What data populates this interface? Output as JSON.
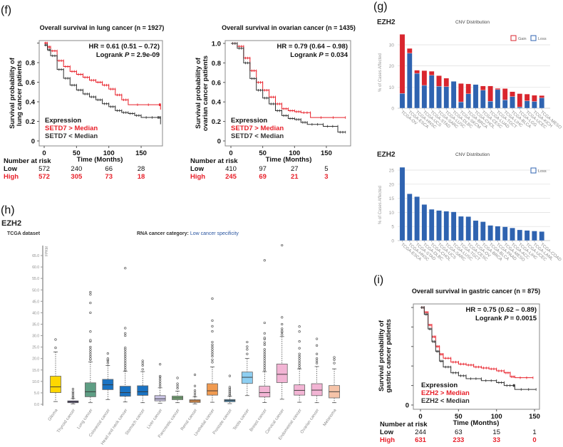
{
  "panel_labels": {
    "f": "(f)",
    "g": "(g)",
    "h": "(h)",
    "i": "(i)"
  },
  "colors": {
    "high": "#e8202a",
    "low": "#333333",
    "gain": "#d9262e",
    "loss": "#2f63b0",
    "link": "#2a55a0"
  },
  "chart_data": [
    {
      "type": "line",
      "style": "kaplan-meier step",
      "title": "Overall survival in lung cancer (n = 1927)",
      "hr": "HR = 0.61 (0.51 – 0.72)",
      "logrank": {
        "label": "Logrank",
        "p": "P",
        "value": "= 2.9e-09"
      },
      "ylabel": [
        "Survival probability of",
        "lung cancer patients"
      ],
      "xlabel": "Time (Months)",
      "xticks": [
        0,
        50,
        100,
        150
      ],
      "yticks": [
        0,
        0.2,
        0.4,
        0.6,
        0.8,
        1.0
      ],
      "ytick_labels": [
        "0",
        "0.2",
        "0.4",
        "0.6",
        "0.8",
        ""
      ],
      "xlim": [
        0,
        180
      ],
      "ylim": [
        0,
        1
      ],
      "legend_title": "Expression",
      "series": [
        {
          "name": "SETD7 > Median",
          "color": "#e8202a",
          "points": [
            [
              0,
              1
            ],
            [
              5,
              0.96
            ],
            [
              10,
              0.92
            ],
            [
              20,
              0.82
            ],
            [
              30,
              0.76
            ],
            [
              40,
              0.71
            ],
            [
              50,
              0.68
            ],
            [
              60,
              0.65
            ],
            [
              70,
              0.62
            ],
            [
              80,
              0.6
            ],
            [
              90,
              0.57
            ],
            [
              100,
              0.53
            ],
            [
              110,
              0.47
            ],
            [
              120,
              0.42
            ],
            [
              130,
              0.37
            ],
            [
              178,
              0.37
            ],
            [
              180,
              0.32
            ]
          ]
        },
        {
          "name": "SETD7 < Median",
          "color": "#333333",
          "points": [
            [
              0,
              0.98
            ],
            [
              5,
              0.93
            ],
            [
              10,
              0.87
            ],
            [
              20,
              0.73
            ],
            [
              30,
              0.64
            ],
            [
              40,
              0.57
            ],
            [
              50,
              0.52
            ],
            [
              60,
              0.48
            ],
            [
              70,
              0.45
            ],
            [
              80,
              0.42
            ],
            [
              90,
              0.38
            ],
            [
              100,
              0.35
            ],
            [
              110,
              0.31
            ],
            [
              120,
              0.29
            ],
            [
              130,
              0.28
            ],
            [
              140,
              0.26
            ],
            [
              150,
              0.24
            ],
            [
              176,
              0.24
            ],
            [
              180,
              0.17
            ]
          ]
        }
      ],
      "risk_table": {
        "title": "Number at risk",
        "rows": [
          {
            "label": "Low",
            "values": [
              572,
              240,
              66,
              28
            ]
          },
          {
            "label": "High",
            "values": [
              572,
              305,
              73,
              18
            ]
          }
        ]
      }
    },
    {
      "type": "line",
      "style": "kaplan-meier step",
      "title": "Overall survival in ovarian cancer (n = 1435)",
      "hr": "HR = 0.79 (0.64 – 0.98)",
      "logrank": {
        "label": "Logrank",
        "p": "P",
        "value": "= 0.034"
      },
      "ylabel": [
        "Survival probability of",
        "ovarian cancer patients"
      ],
      "xlabel": "Time (Months)",
      "xticks": [
        0,
        50,
        100,
        150
      ],
      "yticks": [
        0,
        0.2,
        0.4,
        0.6,
        0.8,
        1.0
      ],
      "ytick_labels": [
        "0",
        "0.2",
        "0.4",
        "0.6",
        "0.8",
        "1.0"
      ],
      "xlim": [
        0,
        180
      ],
      "ylim": [
        0,
        1
      ],
      "legend_title": "Expression",
      "series": [
        {
          "name": "SETD7 > Median",
          "color": "#e8202a",
          "points": [
            [
              0,
              1
            ],
            [
              10,
              0.97
            ],
            [
              20,
              0.85
            ],
            [
              30,
              0.72
            ],
            [
              40,
              0.6
            ],
            [
              50,
              0.52
            ],
            [
              60,
              0.45
            ],
            [
              70,
              0.38
            ],
            [
              80,
              0.33
            ],
            [
              90,
              0.31
            ],
            [
              100,
              0.3
            ],
            [
              110,
              0.29
            ],
            [
              125,
              0.24
            ],
            [
              180,
              0.24
            ]
          ]
        },
        {
          "name": "SETD7 < Median",
          "color": "#333333",
          "points": [
            [
              0,
              1
            ],
            [
              10,
              0.95
            ],
            [
              20,
              0.8
            ],
            [
              30,
              0.64
            ],
            [
              40,
              0.52
            ],
            [
              50,
              0.44
            ],
            [
              60,
              0.38
            ],
            [
              70,
              0.31
            ],
            [
              80,
              0.26
            ],
            [
              90,
              0.23
            ],
            [
              100,
              0.22
            ],
            [
              110,
              0.19
            ],
            [
              120,
              0.17
            ],
            [
              145,
              0.15
            ],
            [
              168,
              0.09
            ],
            [
              180,
              0.09
            ]
          ]
        }
      ],
      "risk_table": {
        "title": "Number at risk",
        "rows": [
          {
            "label": "Low",
            "values": [
              410,
              97,
              27,
              5
            ]
          },
          {
            "label": "High",
            "values": [
              245,
              69,
              21,
              3
            ]
          }
        ]
      }
    },
    {
      "type": "bar",
      "stacked": true,
      "gene": "EZH2",
      "title": "CNV Distribution",
      "ylabel": "% of Cases Affected",
      "ylim": [
        0,
        35
      ],
      "yticks": [
        0,
        10,
        20,
        30
      ],
      "grid": true,
      "legend_position": "top-right",
      "categories": [
        "TCGA-OV",
        "TCGA-ESCA",
        "TCGA-HNSC",
        "TCGA-UCS",
        "TCGA-STAD",
        "TCGA-SARC",
        "TCGA-LUSC",
        "TCGA-DLBC",
        "TCGA-SKCM",
        "TCGA-BRCA",
        "TCGA-CHOL",
        "TCGA-CESC",
        "TCGA-LUAD",
        "TCGA-TGCT",
        "TCGA-LIHC",
        "TCGA-BLCA",
        "TCGA-LGG",
        "TCGA-UCEC",
        "TCGA-KICH",
        "TCGA-MESO"
      ],
      "series": [
        {
          "name": "Loss",
          "color": "#2f63b0",
          "values": [
            7,
            26,
            16.5,
            10.8,
            15.6,
            10.4,
            10.2,
            12.7,
            3,
            6.8,
            11.2,
            8.5,
            3.3,
            8.8,
            3.9,
            5.5,
            0.6,
            3.5,
            3.2,
            4.9
          ]
        },
        {
          "name": "Gain",
          "color": "#d9262e",
          "values": [
            28,
            2.3,
            1.5,
            7,
            1.9,
            5,
            4,
            0,
            8.7,
            4.7,
            0,
            2,
            7.2,
            0.6,
            5.4,
            2.3,
            6.3,
            3.2,
            2.9,
            1.1
          ]
        }
      ]
    },
    {
      "type": "bar",
      "gene": "EZH2",
      "title": "CNV Distribution",
      "ylabel": "% of Cases Affected",
      "ylim": [
        0,
        26
      ],
      "yticks": [
        0,
        5,
        10,
        15,
        20,
        25
      ],
      "grid": true,
      "legend_position": "top-right",
      "categories": [
        "TCGA-ESCA",
        "TCGA-HNSC",
        "TCGA-STAD",
        "TCGA-DLBC",
        "TCGA-CHOL",
        "TCGA-UCS",
        "TCGA-SARC",
        "TCGA-LUSC",
        "TCGA-TGCT",
        "TCGA-CESC",
        "TCGA-OV",
        "TCGA-BRCA",
        "TCGA-BLCA",
        "TCGA-PAAD",
        "TCGA-MESO",
        "TCGA-ACC",
        "TCGA-LIHC",
        "TCGA-UCEC",
        "TCGA-LAML",
        "TCGA-COAD"
      ],
      "series": [
        {
          "name": "Loss",
          "color": "#2f63b0",
          "values": [
            26,
            16.6,
            15.6,
            12.8,
            11.1,
            10.7,
            10.4,
            10.2,
            8.6,
            8.5,
            7.1,
            6.7,
            5.4,
            5.1,
            4.9,
            4.5,
            3.8,
            3.6,
            3.4,
            3.2
          ]
        }
      ]
    },
    {
      "type": "box",
      "gene": "EZH2",
      "dataset_label": "TCGA dataset",
      "category_label": "RNA cancer category:",
      "category_value": "Low cancer specificity",
      "ylabel": "FPKM",
      "ylim": [
        0,
        70
      ],
      "yticks": [
        0,
        5,
        10,
        15,
        20,
        25,
        30,
        35,
        40,
        45,
        50,
        55,
        60,
        65
      ],
      "ytick_labels": [
        "0.0",
        "5.0",
        "10.0",
        "15.0",
        "20.0",
        "25.0",
        "30.0",
        "35.0",
        "40.0",
        "45.0",
        "50.0",
        "55.0",
        "60.0",
        "65.0"
      ],
      "categories": [
        "Glioma",
        "Thyroid cancer",
        "Lung cancer",
        "Colorectal cancer",
        "Head and neck cancer",
        "Stomach cancer",
        "Liver cancer",
        "Pancreatic cancer",
        "Renal cancer",
        "Urothelial cancer",
        "Prostate cancer",
        "Testis cancer",
        "Breast cancer",
        "Cervical cancer",
        "Endometrial cancer",
        "Ovarian cancer",
        "Melanoma"
      ],
      "colors": [
        "#ffd700",
        "#4b3d7a",
        "#5e9e84",
        "#1a73c3",
        "#1a73c3",
        "#1a73c3",
        "#c9c3e3",
        "#7db07d",
        "#f09a50",
        "#f09a50",
        "#4a8db5",
        "#8ecff2",
        "#f2b4d4",
        "#f2b4d4",
        "#f2b4d4",
        "#f2b4d4",
        "#f5c3a8"
      ],
      "stats_min_q1_median_q3_max": [
        [
          1.2,
          5.1,
          7.6,
          12.3,
          22.9
        ],
        [
          0.2,
          0.7,
          1.1,
          1.5,
          2.5
        ],
        [
          0.7,
          3.3,
          5.5,
          9.4,
          18.5
        ],
        [
          2.1,
          6.4,
          8.5,
          10.9,
          17
        ],
        [
          1,
          3.5,
          5.1,
          7.9,
          14.5
        ],
        [
          0.7,
          3.9,
          5.5,
          8.1,
          14.3
        ],
        [
          0.5,
          1.5,
          2.4,
          3.8,
          7.2
        ],
        [
          0.7,
          2,
          2.8,
          3.6,
          5.8
        ],
        [
          0.1,
          0.8,
          1.5,
          2,
          3.3
        ],
        [
          0.9,
          4,
          5.9,
          9,
          16.3
        ],
        [
          0.3,
          1.1,
          1.7,
          2.1,
          3.5
        ],
        [
          3.8,
          9.1,
          11.8,
          14.1,
          20
        ],
        [
          0.8,
          3.2,
          5.1,
          7.9,
          14.3
        ],
        [
          2.2,
          9.5,
          13.1,
          17.6,
          29.6
        ],
        [
          0.9,
          4,
          6.1,
          8.5,
          15.5
        ],
        [
          0.7,
          3.8,
          6.2,
          9,
          16.5
        ],
        [
          0.7,
          2.8,
          5.5,
          8.2,
          15.5
        ]
      ],
      "outliers": [
        [
          24.7,
          28.3
        ],
        [
          3,
          3.5,
          4,
          4.6,
          5.2,
          5.6,
          6.7
        ],
        [
          19.5,
          20,
          21,
          22,
          23,
          24,
          25,
          27.5,
          28,
          31.8,
          40,
          44.3,
          48,
          49
        ],
        [
          18,
          19,
          19.5,
          20,
          22.2
        ],
        [
          15,
          16,
          17,
          18,
          19,
          20,
          21,
          22,
          23,
          24,
          24.7,
          30,
          31,
          33.3,
          59.5
        ],
        [
          15.3,
          17,
          18,
          19
        ],
        [
          8,
          9,
          10,
          11,
          12,
          12.3,
          17.5
        ],
        [
          7,
          8,
          9,
          11.5
        ],
        [
          4,
          5,
          6,
          8,
          12.9
        ],
        [
          18.4,
          19.5,
          21,
          22,
          23,
          24,
          25,
          26,
          27.2,
          31.9,
          34.1,
          36.6,
          46.2
        ],
        [
          4,
          4.5,
          5,
          5.5,
          6,
          6.5,
          7,
          7.5,
          12.4
        ],
        [
          22,
          24,
          25.2,
          27.2
        ],
        [
          15,
          16,
          17,
          18,
          19,
          20,
          21,
          22,
          23,
          24,
          26,
          27,
          28.5,
          29,
          31,
          35.6,
          62.9
        ],
        [
          30.5,
          31.5,
          32,
          33,
          35,
          38,
          69.5
        ],
        [
          16,
          17,
          18,
          19,
          20,
          21,
          22,
          24.5,
          27.5,
          31.8,
          34
        ],
        [
          18,
          19,
          20,
          22,
          25.7,
          28.6
        ],
        [
          18,
          19.5,
          20.5
        ]
      ]
    },
    {
      "type": "line",
      "style": "kaplan-meier step",
      "title": "Overall survival in gastric cancer (n = 875)",
      "hr": "HR = 0.75 (0.62 – 0.89)",
      "logrank": {
        "label": "Logrank",
        "p": "P",
        "value": "= 0.0015"
      },
      "ylabel": [
        "Survival probability of",
        "gastric cancer patients"
      ],
      "xlabel": "Time (Months)",
      "xticks": [
        0,
        50,
        100,
        150
      ],
      "yticks": [
        0,
        0.2,
        0.4,
        0.6,
        0.8,
        1.0
      ],
      "ytick_labels": [
        "0",
        "",
        "",
        "",
        "",
        ""
      ],
      "xlim": [
        0,
        155
      ],
      "ylim": [
        0,
        1
      ],
      "legend_title": "Expression",
      "series": [
        {
          "name": "EZH2 > Median",
          "color": "#e8202a",
          "points": [
            [
              0,
              1
            ],
            [
              5,
              0.95
            ],
            [
              10,
              0.82
            ],
            [
              15,
              0.7
            ],
            [
              20,
              0.6
            ],
            [
              25,
              0.52
            ],
            [
              30,
              0.48
            ],
            [
              40,
              0.44
            ],
            [
              50,
              0.42
            ],
            [
              60,
              0.41
            ],
            [
              70,
              0.39
            ],
            [
              80,
              0.38
            ],
            [
              90,
              0.37
            ],
            [
              100,
              0.35
            ],
            [
              110,
              0.33
            ],
            [
              118,
              0.29
            ],
            [
              124,
              0.28
            ],
            [
              148,
              0.28
            ]
          ]
        },
        {
          "name": "EZH2 < Median",
          "color": "#333333",
          "points": [
            [
              0,
              1
            ],
            [
              5,
              0.93
            ],
            [
              10,
              0.78
            ],
            [
              15,
              0.65
            ],
            [
              20,
              0.55
            ],
            [
              25,
              0.45
            ],
            [
              30,
              0.39
            ],
            [
              40,
              0.33
            ],
            [
              50,
              0.3
            ],
            [
              60,
              0.27
            ],
            [
              80,
              0.25
            ],
            [
              100,
              0.23
            ],
            [
              110,
              0.2
            ],
            [
              122,
              0.2
            ],
            [
              124,
              0.16
            ],
            [
              152,
              0.16
            ]
          ]
        }
      ],
      "risk_table": {
        "title": "Number at risk",
        "rows": [
          {
            "label": "Low",
            "values": [
              244,
              63,
              15,
              1
            ]
          },
          {
            "label": "High",
            "values": [
              631,
              233,
              33,
              0
            ]
          }
        ]
      }
    }
  ]
}
